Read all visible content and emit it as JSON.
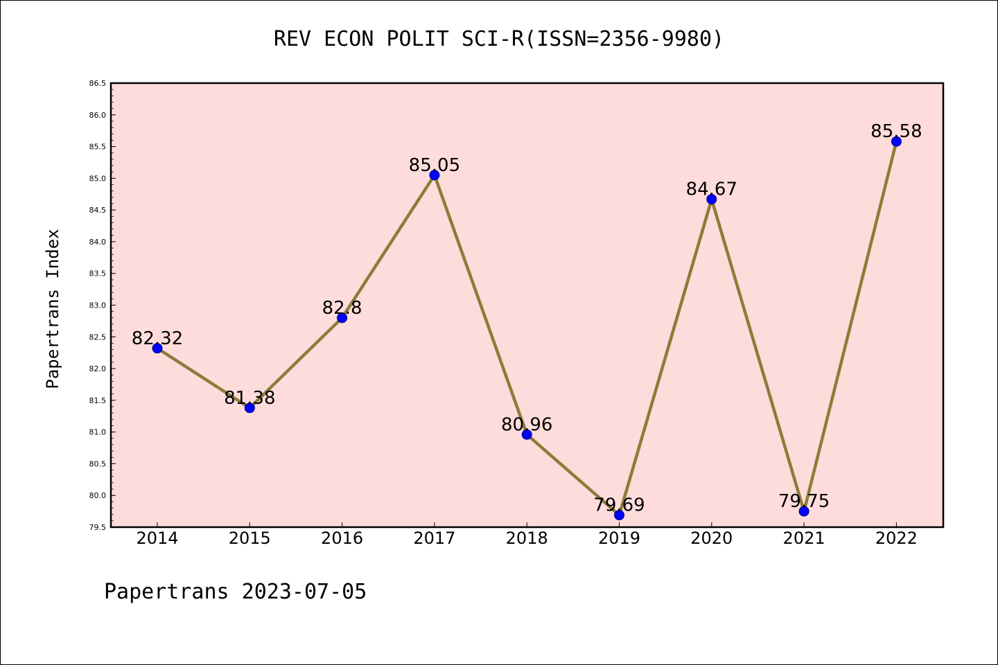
{
  "footer": "Papertrans 2023-07-05",
  "colors": {
    "plot_background": "#ffdcdc",
    "line": "#8b7d3a",
    "marker": "#0000ff",
    "marker_edge": "#000080"
  },
  "chart_data": {
    "type": "line",
    "title": "REV ECON POLIT SCI-R(ISSN=2356-9980)",
    "xlabel": "",
    "ylabel": "Papertrans Index",
    "x": [
      "2014",
      "2015",
      "2016",
      "2017",
      "2018",
      "2019",
      "2020",
      "2021",
      "2022"
    ],
    "series": [
      {
        "values": [
          82.32,
          81.38,
          82.8,
          85.05,
          80.96,
          79.69,
          84.67,
          79.75,
          85.58
        ],
        "labels": [
          "82.32",
          "81.38",
          "82.8",
          "85.05",
          "80.96",
          "79.69",
          "84.67",
          "79.75",
          "85.58"
        ]
      }
    ],
    "ylim": [
      79.5,
      86.5
    ],
    "yticks": [
      "79.5",
      "80.0",
      "80.5",
      "81.0",
      "81.5",
      "82.0",
      "82.5",
      "83.0",
      "83.5",
      "84.0",
      "84.5",
      "85.0",
      "85.5",
      "86.0",
      "86.5"
    ],
    "grid": false,
    "legend": "none"
  }
}
